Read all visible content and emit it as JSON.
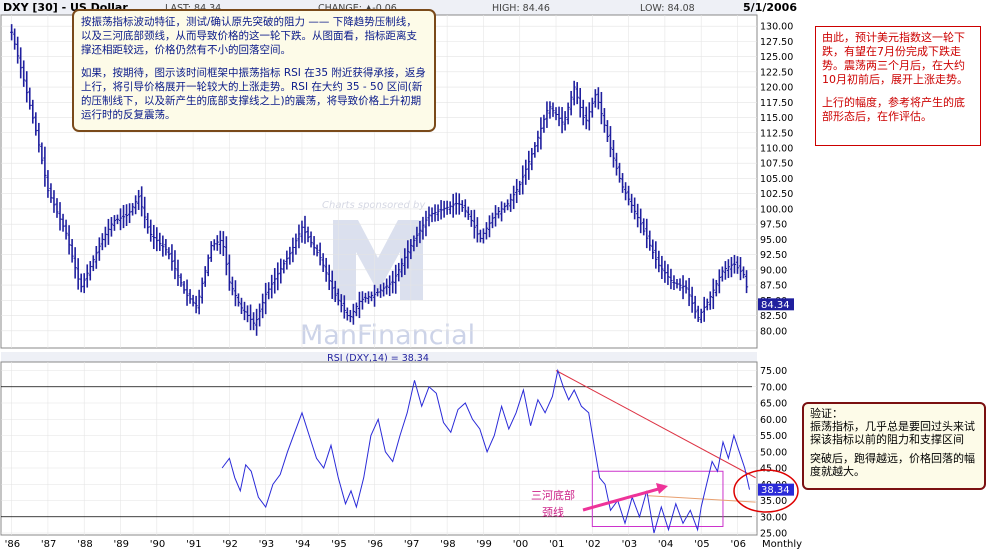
{
  "header": {
    "symbol": "DXY [30] - US Dollar",
    "last": "LAST: 84.34",
    "change": "CHANGE: ▲-0.06",
    "high": "HIGH: 84.46",
    "low": "LOW: 84.08",
    "date": "5/1/2006"
  },
  "watermark": {
    "sponsored": "Charts sponsored by",
    "brand": "ManFinancial"
  },
  "notes": {
    "main_p1": "按振荡指标波动特征，测试/确认原先突破的阻力 —— 下降趋势压制线，以及三河底部颈线，从而导致价格的这一轮下跌。从图面看，指标距离支撑还相距较远，价格仍然有不小的回落空间。",
    "main_p2": "如果，按期待，图示该时间框架中振荡指标 RSI 在35 附近获得承接，返身上行，将引导价格展开一轮较大的上涨走势。RSI 在大约 35 - 50 区间(新的压制线下，以及新产生的底部支撑线之上)的震荡，将导致价格上升初期运行时的反复震荡。",
    "right_p1": "由此，预计美元指数这一轮下跌，有望在7月份完成下跌走势。震荡两三个月后，在大约10月初前后，展开上涨走势。",
    "right_p2": "上行的幅度，参考将产生的底部形态后，在作评估。",
    "verify_title": "验证：",
    "verify_p1": "振荡指标，几乎总是要回过头来试探该指标以前的阻力和支撑区间",
    "verify_p2": "突破后，跑得越远，价格回落的幅度就越大。",
    "pattern_label_1": "三河底部",
    "pattern_label_2": "颈线"
  },
  "colors": {
    "price_bar": "#1f1f9e",
    "rsi_line": "#2a2ad8",
    "trend_line": "#dd3344",
    "support_line": "#e8a070",
    "pattern_box": "#cc33cc",
    "annotation_red": "#cc0000",
    "frame": "#888888"
  },
  "chart_data": [
    {
      "type": "ohlc",
      "title": "DXY [30] - US Dollar",
      "x_range": [
        1985.9,
        2006.4
      ],
      "y_range": [
        77.5,
        131.5
      ],
      "y_ticks": [
        80,
        82.5,
        85,
        87.5,
        90,
        92.5,
        95,
        97.5,
        100,
        102.5,
        105,
        107.5,
        110,
        112.5,
        115,
        117.5,
        120,
        122.5,
        125,
        127.5,
        130
      ],
      "y_tick_labels": [
        "80.00",
        "82.50",
        "85.00",
        "87.50",
        "90.00",
        "92.50",
        "95.00",
        "97.50",
        "100.00",
        "102.50",
        "105.00",
        "107.50",
        "110.00",
        "112.50",
        "115.00",
        "117.50",
        "120.00",
        "122.50",
        "125.00",
        "127.50",
        "130.00"
      ],
      "last_value": 84.34,
      "last_label": "84.34",
      "series_key_points": {
        "x": [
          1986.0,
          1986.3,
          1986.7,
          1987.0,
          1987.5,
          1987.9,
          1988.2,
          1988.5,
          1988.8,
          1989.2,
          1989.5,
          1989.8,
          1990.3,
          1990.8,
          1991.1,
          1991.5,
          1991.8,
          1992.0,
          1992.3,
          1992.7,
          1993.0,
          1993.3,
          1993.7,
          1994.0,
          1994.5,
          1994.9,
          1995.3,
          1995.6,
          1996.0,
          1996.5,
          1997.0,
          1997.5,
          1997.9,
          1998.3,
          1998.6,
          1998.9,
          1999.3,
          1999.7,
          2000.0,
          2000.4,
          2000.8,
          2001.2,
          2001.5,
          2001.8,
          2002.1,
          2002.5,
          2002.8,
          2003.3,
          2003.8,
          2004.2,
          2004.6,
          2004.9,
          2005.2,
          2005.6,
          2005.9,
          2006.2,
          2006.33
        ],
        "y": [
          129,
          122,
          112,
          103,
          96,
          87,
          91,
          95,
          98,
          99,
          102,
          96,
          93,
          86,
          84,
          94,
          95,
          88,
          84,
          81,
          86,
          89,
          93,
          97,
          92,
          86,
          82,
          85,
          86,
          88,
          94,
          99,
          100,
          101,
          99,
          95,
          99,
          101,
          104,
          110,
          117,
          114,
          120,
          114,
          119,
          110,
          104,
          98,
          91,
          88,
          87,
          82,
          85,
          90,
          91,
          89,
          84.34
        ]
      }
    },
    {
      "type": "line",
      "title": "RSI (DXY,14) = 38.34",
      "x_range": [
        1985.9,
        2006.4
      ],
      "y_range": [
        25,
        77
      ],
      "y_ticks": [
        25,
        30,
        35,
        40,
        45,
        50,
        55,
        60,
        65,
        70,
        75
      ],
      "y_tick_labels": [
        "25.00",
        "30.00",
        "35.00",
        "40.00",
        "45.00",
        "50.00",
        "55.00",
        "60.00",
        "65.00",
        "70.00",
        "75.00"
      ],
      "reference_levels": [
        30,
        70
      ],
      "last_value": 38.34,
      "last_label": "38.34",
      "series": [
        {
          "name": "RSI (DXY,14)",
          "x": [
            1991.8,
            1992.0,
            1992.15,
            1992.3,
            1992.45,
            1992.6,
            1992.8,
            1993.0,
            1993.2,
            1993.4,
            1993.6,
            1993.8,
            1994.0,
            1994.2,
            1994.4,
            1994.6,
            1994.8,
            1995.0,
            1995.2,
            1995.35,
            1995.5,
            1995.7,
            1995.9,
            1996.1,
            1996.3,
            1996.5,
            1996.7,
            1996.9,
            1997.1,
            1997.3,
            1997.5,
            1997.7,
            1997.9,
            1998.1,
            1998.3,
            1998.5,
            1998.7,
            1998.9,
            1999.1,
            1999.3,
            1999.5,
            1999.7,
            1999.9,
            2000.1,
            2000.3,
            2000.5,
            2000.7,
            2000.9,
            2001.05,
            2001.2,
            2001.35,
            2001.5,
            2001.7,
            2001.9,
            2002.05,
            2002.2,
            2002.35,
            2002.5,
            2002.7,
            2002.9,
            2003.1,
            2003.3,
            2003.5,
            2003.7,
            2003.9,
            2004.1,
            2004.3,
            2004.5,
            2004.7,
            2004.9,
            2005.0,
            2005.15,
            2005.3,
            2005.45,
            2005.6,
            2005.75,
            2005.9,
            2006.05,
            2006.2,
            2006.33
          ],
          "y": [
            45,
            48,
            42,
            38,
            46,
            44,
            36,
            33,
            40,
            43,
            50,
            56,
            62,
            55,
            48,
            45,
            52,
            42,
            34,
            38,
            33,
            42,
            55,
            60,
            50,
            47,
            55,
            62,
            72,
            64,
            70,
            68,
            59,
            56,
            63,
            65,
            60,
            57,
            50,
            55,
            64,
            57,
            62,
            69,
            58,
            66,
            62,
            67,
            75,
            70,
            66,
            69,
            64,
            62,
            52,
            42,
            40,
            32,
            35,
            28,
            36,
            30,
            38,
            25,
            33,
            26,
            34,
            28,
            32,
            26,
            33,
            40,
            47,
            44,
            53,
            48,
            55,
            50,
            45,
            38.34
          ]
        }
      ],
      "trend_lines": [
        {
          "x1": 2001.0,
          "y1": 75,
          "x2": 2006.5,
          "y2": 42
        },
        {
          "x1": 2003.5,
          "y1": 36.5,
          "x2": 2006.5,
          "y2": 34.5
        }
      ],
      "pattern_box": {
        "x1": 2002.0,
        "y1": 27,
        "x2": 2005.6,
        "y2": 44
      }
    }
  ],
  "x_axis": {
    "ticks": [
      1986,
      1987,
      1988,
      1989,
      1990,
      1991,
      1992,
      1993,
      1994,
      1995,
      1996,
      1997,
      1998,
      1999,
      2000,
      2001,
      2002,
      2003,
      2004,
      2005,
      2006
    ],
    "labels": [
      "'86",
      "'87",
      "'88",
      "'89",
      "'90",
      "'91",
      "'92",
      "'93",
      "'94",
      "'95",
      "'96",
      "'97",
      "'98",
      "'99",
      "'00",
      "'01",
      "'02",
      "'03",
      "'04",
      "'05",
      "'06"
    ],
    "period": "Monthly"
  }
}
